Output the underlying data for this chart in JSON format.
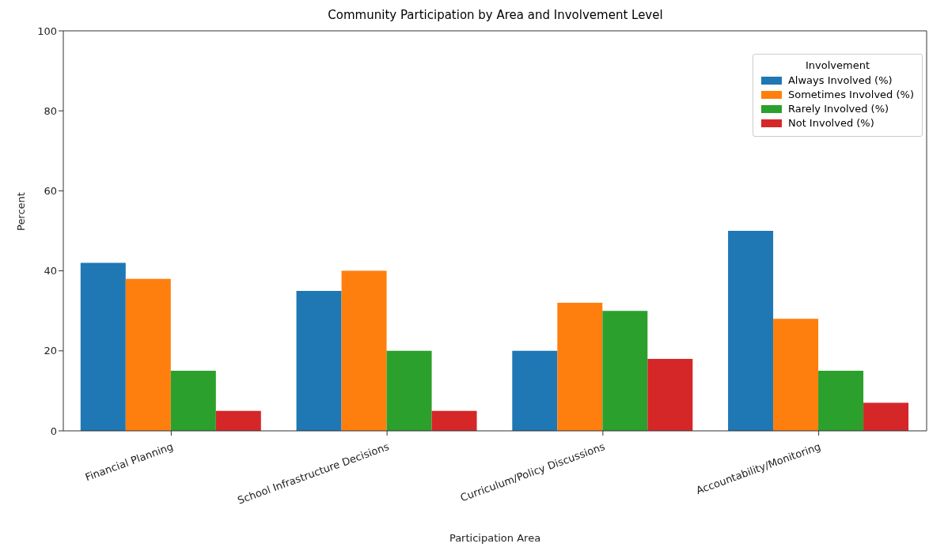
{
  "chart_data": {
    "type": "bar",
    "title": "Community Participation by Area and Involvement Level",
    "xlabel": "Participation Area",
    "ylabel": "Percent",
    "legend_title": "Involvement",
    "categories": [
      "Financial Planning",
      "School Infrastructure Decisions",
      "Curriculum/Policy Discussions",
      "Accountability/Monitoring"
    ],
    "series": [
      {
        "name": "Always Involved (%)",
        "color": "#1f77b4",
        "values": [
          42,
          35,
          20,
          50
        ]
      },
      {
        "name": "Sometimes Involved (%)",
        "color": "#ff7f0e",
        "values": [
          38,
          40,
          32,
          28
        ]
      },
      {
        "name": "Rarely Involved (%)",
        "color": "#2ca02c",
        "values": [
          15,
          20,
          30,
          15
        ]
      },
      {
        "name": "Not Involved (%)",
        "color": "#d62728",
        "values": [
          5,
          5,
          18,
          7
        ]
      }
    ],
    "ylim": [
      0,
      100
    ],
    "yticks": [
      0,
      20,
      40,
      60,
      80,
      100
    ],
    "grid": false,
    "legend": "top right"
  }
}
